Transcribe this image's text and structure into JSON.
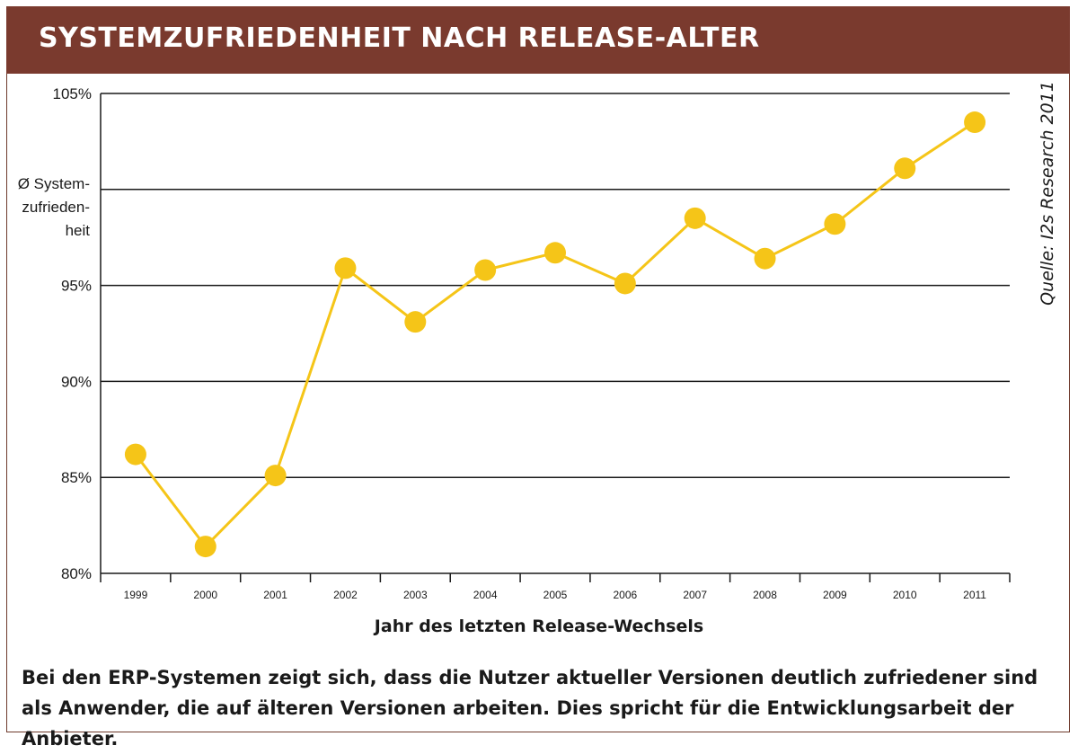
{
  "header": {
    "title": "SYSTEMZUFRIEDENHEIT NACH RELEASE-ALTER"
  },
  "source_note": "Quelle: I2s Research 2011",
  "caption": "Bei den ERP-Systemen zeigt sich, dass die Nutzer aktueller Versionen deutlich zufriedener sind als Anwender, die auf älteren Versionen arbeiten. Dies spricht für die Entwicklungsarbeit der Anbieter.",
  "colors": {
    "header_bg": "#7a3a2e",
    "series": "#f5c518",
    "gridline": "#1a1a1a"
  },
  "chart_data": {
    "type": "line",
    "title": "SYSTEMZUFRIEDENHEIT NACH RELEASE-ALTER",
    "xlabel": "Jahr des letzten Release-Wechsels",
    "ylabel_lines": [
      "Ø System-",
      "zufrieden-",
      "heit"
    ],
    "categories": [
      "1999",
      "2000",
      "2001",
      "2002",
      "2003",
      "2004",
      "2005",
      "2006",
      "2007",
      "2008",
      "2009",
      "2010",
      "2011"
    ],
    "series": [
      {
        "values": [
          86.2,
          81.4,
          85.1,
          95.9,
          93.1,
          95.8,
          96.7,
          95.1,
          98.5,
          96.4,
          98.2,
          101.1,
          103.5
        ]
      }
    ],
    "ylim": [
      80,
      105
    ],
    "yticks": [
      {
        "value": 80,
        "label": "80%"
      },
      {
        "value": 85,
        "label": "85%"
      },
      {
        "value": 90,
        "label": "90%"
      },
      {
        "value": 95,
        "label": "95%"
      },
      {
        "value": 100,
        "label": ""
      },
      {
        "value": 105,
        "label": "105%"
      }
    ],
    "grid": true,
    "legend": "none"
  }
}
